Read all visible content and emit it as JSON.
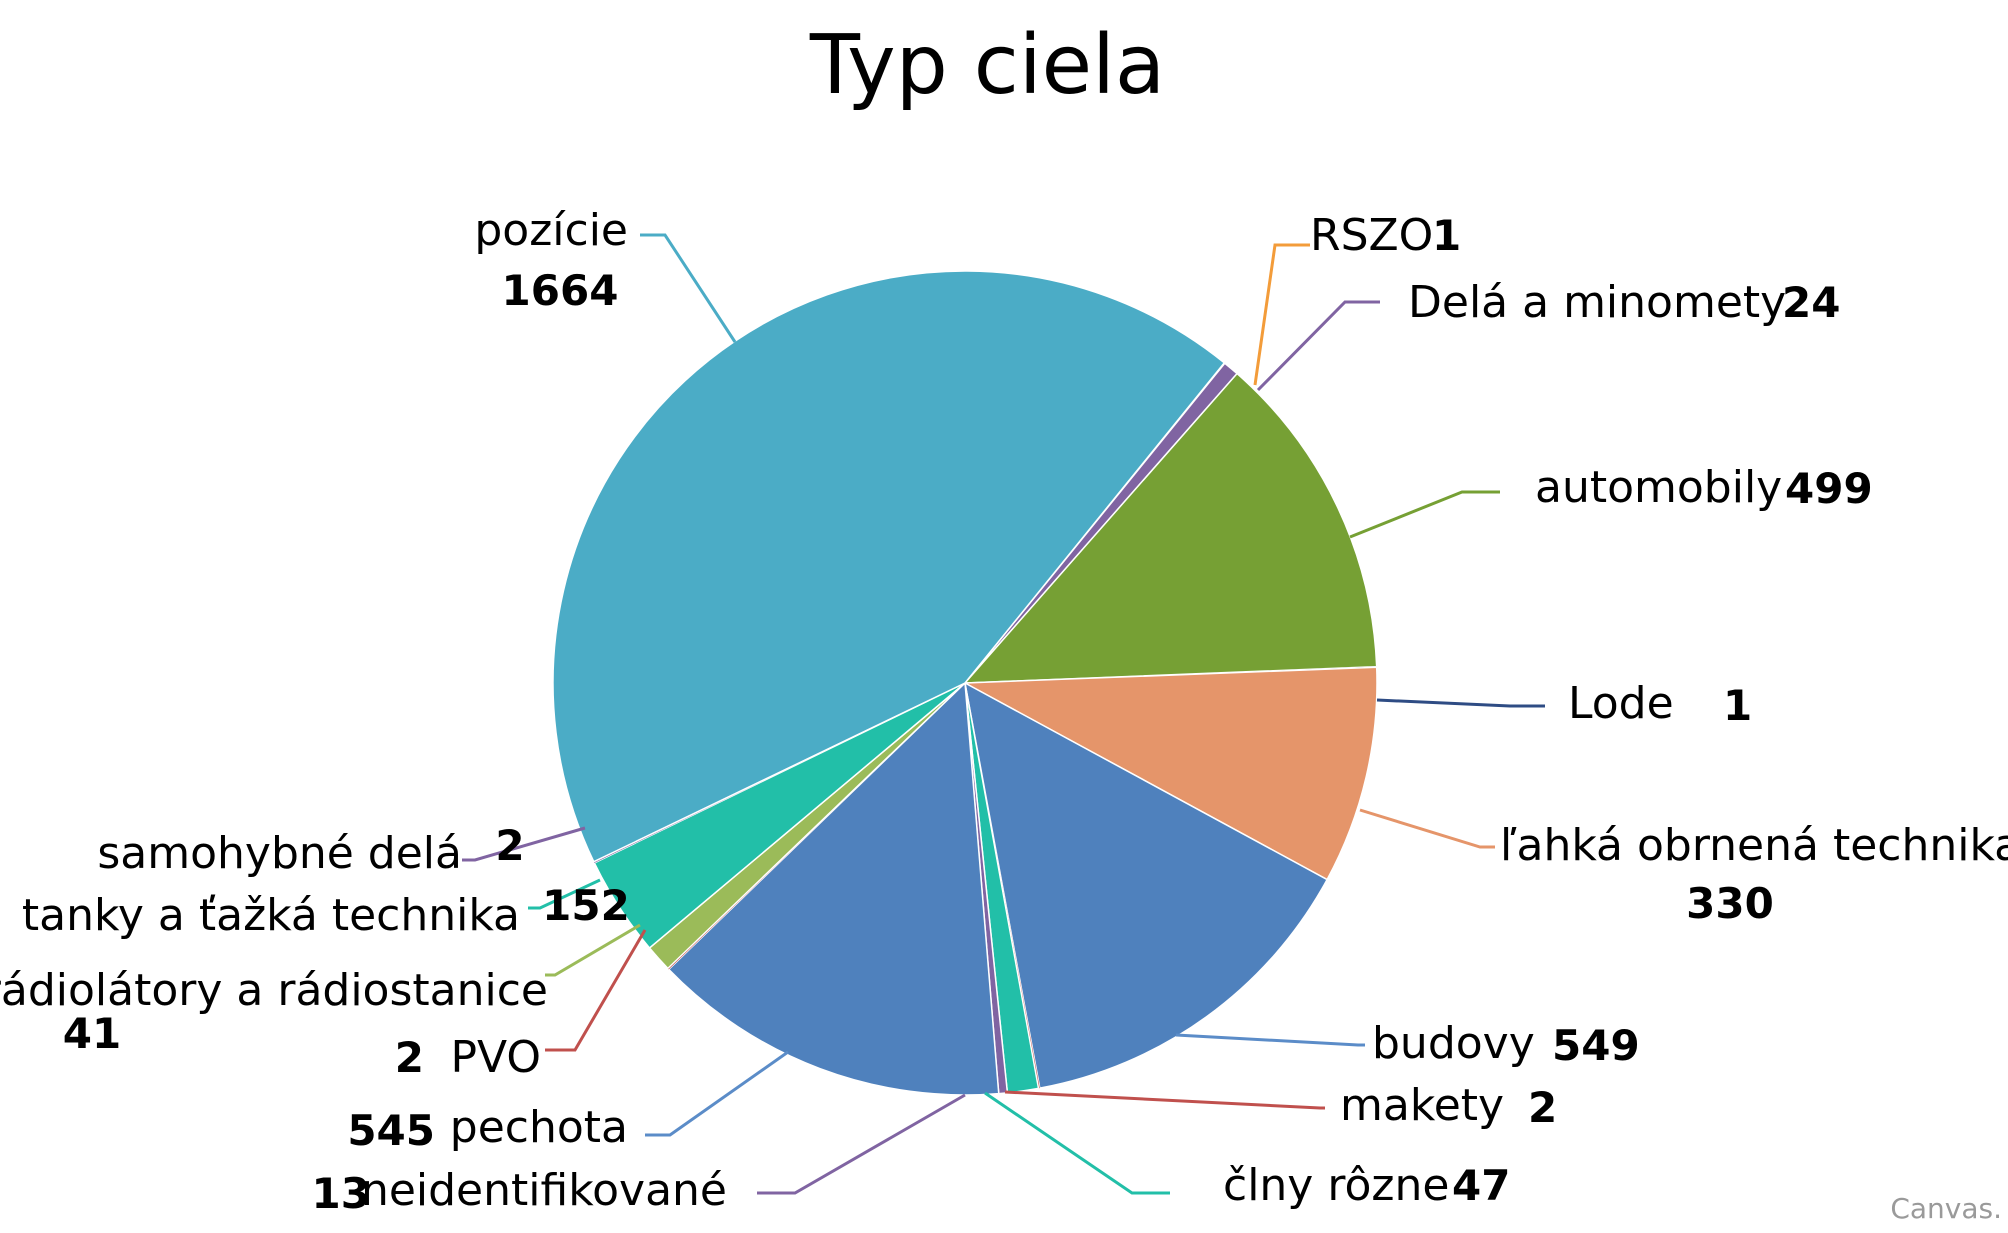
{
  "chart_data": {
    "type": "pie",
    "title": "Typ ciela",
    "slices": [
      {
        "label": "RSZO",
        "value": 1,
        "color": "#F39C3A",
        "line": "#F39C3A"
      },
      {
        "label": "Delá a minomety",
        "value": 24,
        "color": "#8064A2",
        "line": "#8064A2"
      },
      {
        "label": "automobily",
        "value": 499,
        "color": "#76A034",
        "line": "#76A034"
      },
      {
        "label": "Lode",
        "value": 1,
        "color": "#2E4C84",
        "line": "#2E4C84"
      },
      {
        "label": "ľahká obrnená technika",
        "value": 330,
        "color": "#E5956A",
        "line": "#E5956A"
      },
      {
        "label": "budovy",
        "value": 549,
        "color": "#4F81BD",
        "line": "#5B8CC8"
      },
      {
        "label": "makety",
        "value": 2,
        "color": "#C0504D",
        "line": "#C0504D"
      },
      {
        "label": "člny rôzne",
        "value": 47,
        "color": "#22BFA8",
        "line": "#22BFA8"
      },
      {
        "label": "neidentifikované",
        "value": 13,
        "color": "#8064A2",
        "line": "#8064A2"
      },
      {
        "label": "pechota",
        "value": 545,
        "color": "#4F81BD",
        "line": "#5B8CC8"
      },
      {
        "label": "PVO",
        "value": 2,
        "color": "#C0504D",
        "line": "#C0504D"
      },
      {
        "label": "rádiolátory a rádiostanice",
        "value": 41,
        "color": "#9BBB59",
        "line": "#9BBB59"
      },
      {
        "label": "tanky a ťažká technika",
        "value": 152,
        "color": "#22BFA8",
        "line": "#22BFA8"
      },
      {
        "label": "samohybné delá",
        "value": 2,
        "color": "#8064A2",
        "line": "#8064A2"
      },
      {
        "label": "pozície",
        "value": 1664,
        "color": "#4BACC6",
        "line": "#4BACC6"
      }
    ]
  },
  "watermark": "Canvas."
}
